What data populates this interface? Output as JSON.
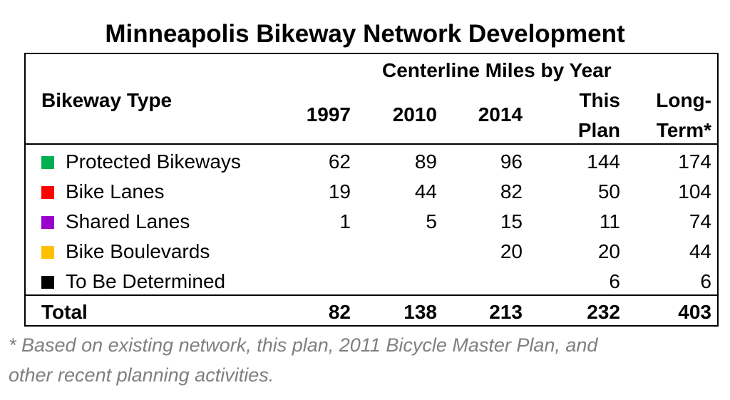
{
  "title": "Minneapolis Bikeway Network Development",
  "header": {
    "group_label": "Centerline Miles by Year",
    "type_label": "Bikeway Type",
    "columns": [
      [
        "1997"
      ],
      [
        "2010"
      ],
      [
        "2014"
      ],
      [
        "This",
        "Plan"
      ],
      [
        "Long-",
        "Term*"
      ]
    ]
  },
  "rows": [
    {
      "label": "Protected Bikeways",
      "color": "#00b050",
      "values": [
        "62",
        "89",
        "96",
        "144",
        "174"
      ]
    },
    {
      "label": "Bike Lanes",
      "color": "#ff0000",
      "values": [
        "19",
        "44",
        "82",
        "50",
        "104"
      ]
    },
    {
      "label": "Shared Lanes",
      "color": "#9900cc",
      "values": [
        "1",
        "5",
        "15",
        "11",
        "74"
      ]
    },
    {
      "label": "Bike Boulevards",
      "color": "#ffc000",
      "values": [
        "",
        "",
        "20",
        "20",
        "44"
      ]
    },
    {
      "label": "To Be Determined",
      "color": "#000000",
      "values": [
        "",
        "",
        "",
        "6",
        "6"
      ]
    }
  ],
  "total": {
    "label": "Total",
    "values": [
      "82",
      "138",
      "213",
      "232",
      "403"
    ]
  },
  "footnote": [
    "* Based on existing network, this plan, 2011 Bicycle Master Plan, and",
    "other recent planning activities."
  ]
}
